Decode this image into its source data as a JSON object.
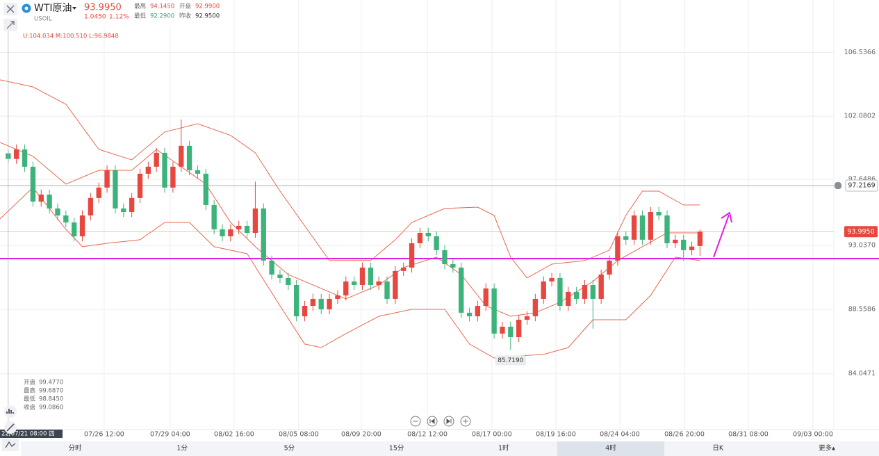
{
  "header": {
    "name": "WTI原油",
    "symbol": "USOIL",
    "price": "93.9950",
    "change": "1.0450",
    "change_pct": "1.12%",
    "stats": [
      {
        "label": "最高",
        "value": "94.1450",
        "color": "#e6473e"
      },
      {
        "label": "开盘",
        "value": "92.9900",
        "color": "#e6473e"
      },
      {
        "label": "最低",
        "value": "92.2900",
        "color": "#2eaa6b"
      },
      {
        "label": "昨收",
        "value": "92.9500",
        "color": "#333333"
      }
    ]
  },
  "indicator": "U:104.034 M:100.510 L:96.9848",
  "ohlc_panel": [
    {
      "label": "开盘",
      "value": "99.4770"
    },
    {
      "label": "最高",
      "value": "99.6870"
    },
    {
      "label": "最低",
      "value": "98.8450"
    },
    {
      "label": "收盘",
      "value": "99.0860"
    }
  ],
  "nav": {
    "tabs": [
      "分时",
      "1分",
      "5分",
      "15分",
      "1时",
      "4时",
      "日K"
    ],
    "selected": 5,
    "more": "更多▴"
  },
  "chart_data": {
    "type": "candlestick",
    "up_color": "#e6473e",
    "down_color": "#3cb37a",
    "crosshair": {
      "x": 0,
      "label": "22/07/21 08:00 四"
    },
    "open": [
      99.477,
      99.086,
      99.75,
      98.54,
      96.1,
      96.59,
      95.62,
      95.13,
      94.64,
      93.67,
      95.13,
      96.35,
      97.08,
      98.29,
      95.62,
      95.37,
      96.35,
      98.05,
      98.54,
      99.51,
      97.08,
      98.54,
      100.0,
      98.29,
      98.05,
      95.86,
      94.16,
      93.67,
      94.16,
      94.4,
      93.91,
      95.62,
      91.97,
      90.99,
      90.75,
      90.26,
      88.07,
      88.8,
      89.29,
      88.56,
      89.29,
      89.53,
      90.51,
      90.26,
      91.48,
      90.26,
      90.51,
      89.29,
      91.24,
      91.48,
      93.18,
      93.91,
      93.67,
      92.7,
      91.72,
      91.48,
      88.32,
      88.07,
      88.8,
      90.02,
      86.86,
      87.34,
      86.61,
      87.83,
      88.07,
      89.29,
      90.51,
      90.75,
      88.8,
      89.78,
      89.29,
      90.26,
      89.29,
      90.99,
      91.97,
      93.67,
      93.43,
      95.13,
      93.43,
      95.37,
      95.13,
      93.18,
      93.43,
      92.7,
      92.99
    ],
    "high": [
      99.687,
      100.1,
      100.1,
      98.89,
      96.94,
      96.94,
      95.97,
      95.48,
      94.99,
      95.48,
      96.7,
      97.43,
      98.64,
      98.64,
      95.97,
      96.7,
      98.4,
      98.89,
      99.86,
      99.86,
      98.89,
      101.85,
      100.35,
      98.64,
      98.4,
      96.21,
      94.51,
      94.51,
      94.75,
      94.75,
      97.5,
      95.97,
      92.32,
      91.34,
      91.1,
      90.61,
      89.15,
      89.64,
      89.64,
      89.64,
      89.88,
      90.86,
      90.86,
      91.83,
      91.83,
      90.86,
      90.86,
      91.59,
      91.83,
      93.53,
      94.26,
      94.26,
      94.02,
      93.05,
      92.07,
      91.83,
      88.67,
      89.15,
      90.37,
      90.37,
      87.69,
      87.69,
      88.18,
      88.42,
      89.64,
      90.86,
      91.1,
      91.1,
      90.13,
      90.13,
      90.61,
      90.61,
      91.34,
      92.32,
      94.02,
      94.02,
      95.48,
      95.48,
      95.72,
      95.72,
      95.48,
      93.78,
      93.78,
      93.3,
      94.145
    ],
    "low": [
      98.845,
      98.74,
      98.19,
      95.75,
      95.75,
      95.27,
      94.78,
      94.29,
      93.32,
      93.32,
      94.78,
      96.0,
      96.73,
      95.27,
      95.02,
      95.02,
      96.0,
      97.7,
      98.19,
      96.73,
      96.73,
      98.19,
      97.94,
      97.7,
      95.51,
      93.81,
      93.32,
      93.32,
      93.81,
      93.56,
      93.56,
      91.62,
      90.64,
      90.4,
      89.91,
      87.72,
      87.72,
      88.45,
      88.21,
      88.21,
      88.94,
      89.18,
      89.91,
      89.91,
      89.91,
      89.91,
      88.94,
      88.94,
      90.89,
      91.13,
      92.83,
      93.32,
      92.35,
      91.37,
      91.13,
      87.97,
      87.72,
      87.72,
      88.45,
      86.51,
      86.51,
      85.719,
      86.26,
      87.48,
      87.72,
      88.94,
      90.16,
      88.45,
      88.45,
      88.94,
      88.94,
      87.2,
      88.94,
      90.64,
      91.62,
      93.08,
      93.08,
      93.08,
      93.08,
      94.78,
      92.83,
      92.83,
      91.95,
      92.35,
      92.29
    ],
    "close": [
      99.086,
      99.75,
      98.54,
      96.1,
      96.59,
      95.62,
      95.13,
      94.64,
      93.67,
      95.13,
      96.35,
      97.08,
      98.29,
      95.62,
      95.37,
      96.35,
      98.05,
      98.54,
      99.51,
      97.08,
      98.54,
      100.0,
      98.29,
      98.05,
      95.86,
      94.16,
      93.67,
      94.16,
      94.4,
      93.91,
      95.62,
      91.97,
      90.99,
      90.75,
      90.26,
      88.07,
      88.8,
      89.29,
      88.56,
      89.29,
      89.53,
      90.51,
      90.26,
      91.48,
      90.26,
      90.51,
      89.29,
      91.24,
      91.48,
      93.18,
      93.91,
      93.67,
      92.7,
      91.72,
      91.48,
      88.32,
      88.07,
      88.8,
      90.02,
      86.86,
      87.34,
      86.61,
      87.83,
      88.07,
      89.29,
      90.51,
      90.75,
      88.8,
      89.78,
      89.29,
      90.26,
      89.29,
      90.99,
      91.97,
      93.67,
      93.43,
      95.13,
      93.43,
      95.37,
      95.13,
      93.18,
      93.43,
      92.7,
      92.95,
      93.995
    ],
    "bands": {
      "color": "#e8674f",
      "upper": {
        "x": [
          -1,
          3,
          7,
          11,
          15,
          19,
          23,
          27,
          30,
          33,
          39,
          44,
          47,
          49,
          53,
          57,
          59,
          61,
          63,
          66,
          70,
          73,
          75,
          77,
          79,
          82,
          84
        ],
        "values": [
          104.62,
          104.13,
          102.91,
          99.75,
          99.02,
          100.97,
          101.55,
          100.73,
          99.51,
          96.83,
          91.97,
          91.97,
          93.43,
          94.64,
          95.62,
          95.71,
          95.13,
          92.21,
          90.75,
          91.72,
          91.97,
          92.7,
          95.13,
          96.83,
          96.83,
          95.86,
          95.86
        ]
      },
      "middle": {
        "x": [
          -1,
          3,
          7,
          11,
          15,
          18,
          21,
          24,
          27,
          30,
          34,
          38,
          41,
          45,
          48,
          52,
          55,
          58,
          61,
          64,
          67,
          71,
          74,
          77,
          80,
          84
        ],
        "values": [
          100.24,
          99.27,
          97.32,
          98.29,
          98.29,
          99.75,
          98.54,
          97.32,
          94.64,
          92.94,
          90.99,
          90.02,
          89.29,
          90.26,
          91.48,
          92.21,
          90.99,
          88.8,
          88.07,
          88.32,
          89.05,
          90.51,
          91.97,
          92.94,
          93.91,
          93.91
        ]
      },
      "lower": {
        "x": [
          -1,
          3,
          7,
          9,
          12,
          16,
          19,
          22,
          25,
          29,
          33,
          36,
          38,
          41,
          45,
          49,
          53,
          56,
          59,
          62,
          65,
          68,
          71,
          75,
          78,
          81,
          84
        ],
        "values": [
          94.89,
          97.08,
          94.16,
          92.94,
          93.18,
          93.43,
          94.64,
          94.64,
          92.94,
          92.45,
          88.8,
          86.13,
          85.88,
          86.86,
          88.07,
          88.56,
          88.56,
          86.13,
          85.15,
          85.3,
          85.4,
          85.88,
          87.83,
          87.83,
          89.53,
          92.21,
          91.97
        ]
      }
    },
    "hline": {
      "value": 92.11,
      "color": "#e020e0"
    },
    "alert_line": {
      "value": 97.2169,
      "label": "97.2169"
    },
    "price_line": {
      "value": 93.995,
      "label": "93.9950"
    },
    "low_mark": {
      "x": 61,
      "value": 85.719,
      "label": "85.7190"
    },
    "xlim": [
      -1,
      100.25
    ],
    "ylim": [
      80.14,
      110.21
    ],
    "yticks": [
      106.5366,
      102.0802,
      97.6486,
      {
        "value": 93.037,
        "label": "93.0370"
      },
      88.5586,
      84.0471
    ],
    "xticks": [
      {
        "value": 11.65,
        "label": "07/26 12:00"
      },
      {
        "value": 19.66,
        "label": "07/29 04:00"
      },
      {
        "value": 27.43,
        "label": "08/02 16:00"
      },
      {
        "value": 35.27,
        "label": "08/05 08:00"
      },
      {
        "value": 42.87,
        "label": "08/09 20:00"
      },
      {
        "value": 50.89,
        "label": "08/12 12:00"
      },
      {
        "value": 58.73,
        "label": "08/17 00:00"
      },
      {
        "value": 66.5,
        "label": "08/19 16:00"
      },
      {
        "value": 74.26,
        "label": "08/24 04:00"
      },
      {
        "value": 82.11,
        "label": "08/26 20:00"
      },
      {
        "value": 89.87,
        "label": "08/31 08:00"
      },
      {
        "value": 97.72,
        "label": "09/03 00:00"
      }
    ],
    "grid": true
  }
}
